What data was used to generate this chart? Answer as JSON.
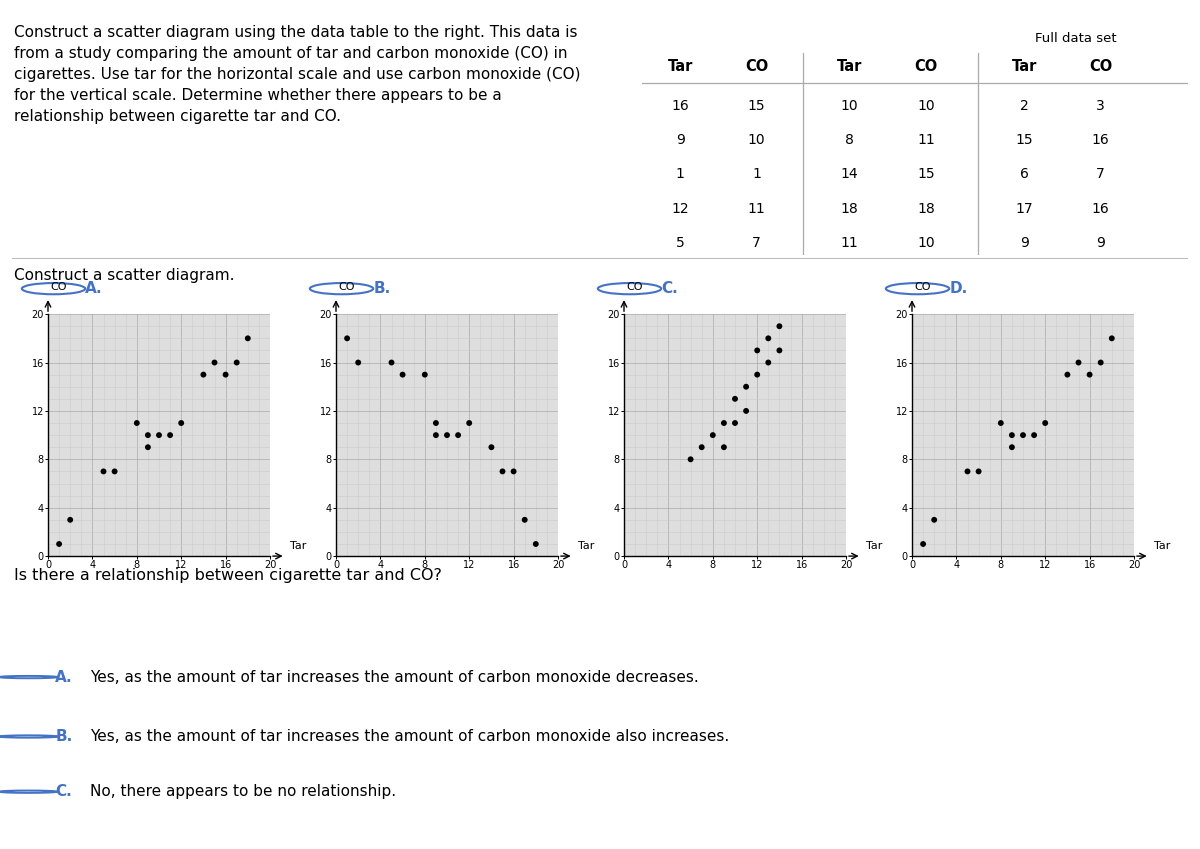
{
  "title_text": "Construct a scatter diagram using the data table to the right. This data is\nfrom a study comparing the amount of tar and carbon monoxide (CO) in\ncigarettes. Use tar for the horizontal scale and use carbon monoxide (CO)\nfor the vertical scale. Determine whether there appears to be a\nrelationship between cigarette tar and CO.",
  "subtitle": "Construct a scatter diagram.",
  "table_headers": [
    "Tar",
    "CO",
    "Tar",
    "CO",
    "Tar",
    "CO"
  ],
  "table_rows": [
    [
      16,
      15,
      10,
      10,
      2,
      3
    ],
    [
      9,
      10,
      8,
      11,
      15,
      16
    ],
    [
      1,
      1,
      14,
      15,
      6,
      7
    ],
    [
      12,
      11,
      18,
      18,
      17,
      16
    ],
    [
      5,
      7,
      11,
      10,
      9,
      9
    ]
  ],
  "tar": [
    16,
    9,
    1,
    12,
    5,
    10,
    8,
    14,
    18,
    11,
    2,
    15,
    6,
    17,
    9
  ],
  "co": [
    15,
    10,
    1,
    11,
    7,
    10,
    11,
    15,
    18,
    10,
    3,
    16,
    7,
    16,
    9
  ],
  "tar_b": [
    1,
    2,
    5,
    6,
    8,
    9,
    9,
    10,
    11,
    12,
    14,
    15,
    16,
    17,
    18
  ],
  "co_b": [
    18,
    16,
    16,
    15,
    15,
    11,
    10,
    10,
    10,
    11,
    9,
    7,
    7,
    3,
    1
  ],
  "tar_c": [
    6,
    7,
    8,
    9,
    9,
    10,
    10,
    11,
    11,
    12,
    12,
    13,
    13,
    14,
    14
  ],
  "co_c": [
    8,
    9,
    10,
    11,
    9,
    11,
    13,
    14,
    12,
    15,
    17,
    16,
    18,
    17,
    19
  ],
  "xlim": [
    0,
    20
  ],
  "ylim": [
    0,
    20
  ],
  "xticks": [
    0,
    4,
    8,
    12,
    16,
    20
  ],
  "yticks": [
    0,
    4,
    8,
    12,
    16,
    20
  ],
  "xlabel": "Tar",
  "ylabel": "CO",
  "bg_color": "#ffffff",
  "grid_color": "#cccccc",
  "dot_color": "#000000",
  "dot_size": 18,
  "relationship_question": "Is there a relationship between cigarette tar and CO?",
  "answers": [
    "Yes, as the amount of tar increases the amount of carbon monoxide decreases.",
    "Yes, as the amount of tar increases the amount of carbon monoxide also increases.",
    "No, there appears to be no relationship."
  ],
  "answer_letters": [
    "A",
    "B",
    "C"
  ],
  "full_data_set_label": "Full data set",
  "option_label_color": "#4472c4",
  "text_color": "#000000",
  "font_size_main": 11,
  "font_size_small": 9.5
}
